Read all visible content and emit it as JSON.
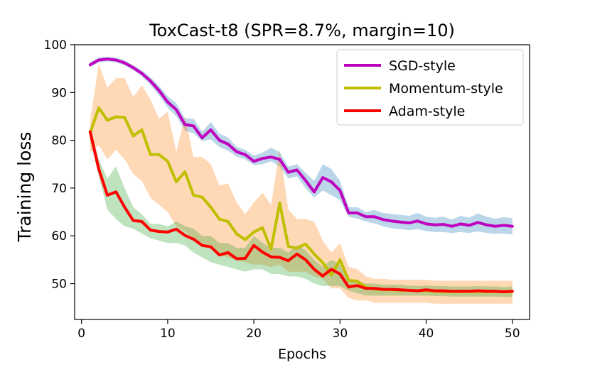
{
  "chart_data": {
    "type": "line",
    "title": "ToxCast-t8 (SPR=8.7%, margin=10)",
    "xlabel": "Epochs",
    "ylabel": "Training loss",
    "xlim": [
      -0.8,
      52.0
    ],
    "ylim": [
      42.5,
      100.0
    ],
    "xticks": [
      0,
      10,
      20,
      30,
      40,
      50
    ],
    "yticks": [
      50,
      60,
      70,
      80,
      90,
      100
    ],
    "grid": false,
    "legend_position": "top-right",
    "x": [
      1,
      2,
      3,
      4,
      5,
      6,
      7,
      8,
      9,
      10,
      11,
      12,
      13,
      14,
      15,
      16,
      17,
      18,
      19,
      20,
      21,
      22,
      23,
      24,
      25,
      26,
      27,
      28,
      29,
      30,
      31,
      32,
      33,
      34,
      35,
      36,
      37,
      38,
      39,
      40,
      41,
      42,
      43,
      44,
      45,
      46,
      47,
      48,
      49,
      50
    ],
    "series": [
      {
        "name": "SGD-style",
        "color": "#bf00bf",
        "band_color": "#1f77b4",
        "values": [
          95.8,
          96.8,
          97.0,
          96.8,
          96.2,
          95.2,
          94.0,
          92.4,
          90.4,
          88.0,
          86.4,
          83.3,
          83.0,
          80.5,
          82.2,
          80.0,
          79.2,
          77.6,
          77.0,
          75.6,
          76.2,
          76.5,
          76.0,
          73.3,
          73.8,
          71.6,
          69.2,
          72.2,
          71.3,
          69.5,
          64.8,
          64.8,
          64.0,
          64.0,
          63.4,
          63.1,
          62.9,
          62.7,
          63.1,
          62.5,
          62.3,
          62.4,
          62.0,
          62.5,
          62.2,
          62.8,
          62.3,
          62.0,
          62.2,
          62.0
        ],
        "lower": [
          95.3,
          96.3,
          96.5,
          96.3,
          95.7,
          94.7,
          93.4,
          91.6,
          89.4,
          86.8,
          85.0,
          82.0,
          81.5,
          79.8,
          80.2,
          78.6,
          77.8,
          76.6,
          76.0,
          74.8,
          75.0,
          75.6,
          74.5,
          72.0,
          72.5,
          70.0,
          68.0,
          69.5,
          68.5,
          67.5,
          64.0,
          63.6,
          63.0,
          62.6,
          62.0,
          61.6,
          61.4,
          61.2,
          61.4,
          61.0,
          60.8,
          60.8,
          60.6,
          60.8,
          60.6,
          60.9,
          60.6,
          60.4,
          60.5,
          60.3
        ],
        "upper": [
          96.3,
          97.3,
          97.5,
          97.3,
          96.7,
          95.7,
          94.6,
          93.2,
          91.4,
          89.2,
          87.8,
          84.6,
          84.5,
          81.8,
          83.8,
          81.4,
          80.6,
          78.6,
          78.0,
          76.8,
          77.4,
          78.5,
          77.5,
          74.5,
          75.0,
          73.2,
          71.5,
          75.0,
          74.0,
          71.5,
          66.0,
          66.0,
          65.0,
          65.4,
          64.8,
          64.6,
          64.4,
          64.2,
          64.8,
          64.0,
          63.8,
          64.0,
          63.4,
          64.2,
          63.8,
          64.7,
          64.0,
          63.6,
          63.9,
          63.7
        ]
      },
      {
        "name": "Momentum-style",
        "color": "#bfbf00",
        "band_color": "#ff7f0e",
        "values": [
          81.5,
          86.8,
          84.2,
          84.9,
          84.8,
          80.9,
          82.2,
          77.0,
          77.0,
          75.6,
          71.3,
          73.4,
          68.5,
          68.1,
          66.0,
          63.5,
          63.0,
          60.4,
          59.2,
          60.8,
          61.7,
          57.2,
          66.9,
          57.8,
          57.4,
          58.3,
          56.2,
          54.4,
          51.8,
          55.0,
          50.7,
          50.5,
          49.3,
          48.8,
          48.8,
          48.7,
          48.6,
          48.6,
          48.5,
          48.5,
          48.4,
          48.3,
          48.3,
          48.3,
          48.3,
          48.3,
          48.3,
          48.3,
          48.3,
          48.3
        ],
        "lower": [
          77.5,
          79.0,
          76.0,
          78.0,
          76.0,
          73.0,
          71.5,
          68.0,
          66.5,
          65.0,
          62.0,
          61.0,
          59.5,
          58.5,
          57.5,
          56.0,
          55.5,
          55.0,
          54.5,
          54.0,
          54.0,
          53.5,
          54.0,
          52.5,
          52.5,
          52.5,
          51.5,
          51.0,
          49.0,
          49.0,
          47.0,
          46.5,
          46.5,
          46.0,
          46.0,
          46.0,
          46.0,
          46.0,
          46.0,
          46.0,
          45.8,
          45.8,
          45.8,
          45.8,
          45.8,
          45.8,
          45.8,
          45.8,
          45.8,
          45.8
        ],
        "upper": [
          84.0,
          96.0,
          91.0,
          93.0,
          93.0,
          89.0,
          91.5,
          88.5,
          84.5,
          86.0,
          77.5,
          85.0,
          76.5,
          76.5,
          75.0,
          70.5,
          71.0,
          67.0,
          64.5,
          67.0,
          69.0,
          66.5,
          78.0,
          65.5,
          63.5,
          63.5,
          63.0,
          59.0,
          56.5,
          58.5,
          53.5,
          53.0,
          51.5,
          51.0,
          51.0,
          50.8,
          50.8,
          50.8,
          50.8,
          50.8,
          50.6,
          50.6,
          50.6,
          50.6,
          50.6,
          50.6,
          50.6,
          50.6,
          50.6,
          50.6
        ]
      },
      {
        "name": "Adam-style",
        "color": "#ff0000",
        "band_color": "#2ca02c",
        "values": [
          81.8,
          74.0,
          68.5,
          69.2,
          66.0,
          63.2,
          63.0,
          61.2,
          60.9,
          60.8,
          61.4,
          60.1,
          59.3,
          58.0,
          57.7,
          56.0,
          56.5,
          55.2,
          55.3,
          58.0,
          56.6,
          55.6,
          55.5,
          54.8,
          56.2,
          55.0,
          53.0,
          51.6,
          53.0,
          52.0,
          49.3,
          49.6,
          49.0,
          49.0,
          48.8,
          48.8,
          48.7,
          48.6,
          48.5,
          48.7,
          48.5,
          48.5,
          48.4,
          48.4,
          48.4,
          48.5,
          48.4,
          48.4,
          48.3,
          48.4
        ],
        "lower": [
          80.0,
          72.5,
          65.5,
          63.5,
          62.0,
          61.5,
          60.5,
          59.5,
          59.0,
          58.5,
          58.5,
          58.0,
          56.5,
          55.5,
          54.5,
          54.0,
          53.5,
          53.0,
          52.5,
          53.0,
          53.0,
          52.0,
          52.0,
          51.5,
          51.5,
          51.0,
          50.0,
          49.5,
          49.5,
          49.5,
          48.5,
          48.0,
          47.5,
          47.5,
          47.5,
          47.5,
          47.5,
          47.5,
          47.5,
          47.5,
          47.4,
          47.4,
          47.3,
          47.3,
          47.3,
          47.3,
          47.3,
          47.3,
          47.2,
          47.2
        ],
        "upper": [
          83.0,
          76.0,
          72.0,
          74.5,
          70.0,
          66.0,
          64.5,
          62.5,
          62.5,
          62.0,
          63.0,
          62.0,
          61.5,
          60.0,
          60.0,
          58.5,
          58.5,
          57.5,
          57.5,
          60.0,
          58.5,
          57.5,
          57.5,
          56.5,
          58.0,
          57.0,
          55.0,
          53.5,
          55.0,
          54.0,
          50.5,
          50.5,
          50.0,
          50.0,
          49.8,
          49.8,
          49.8,
          49.6,
          49.5,
          49.6,
          49.5,
          49.5,
          49.4,
          49.4,
          49.4,
          49.5,
          49.4,
          49.4,
          49.3,
          49.4
        ]
      }
    ]
  }
}
